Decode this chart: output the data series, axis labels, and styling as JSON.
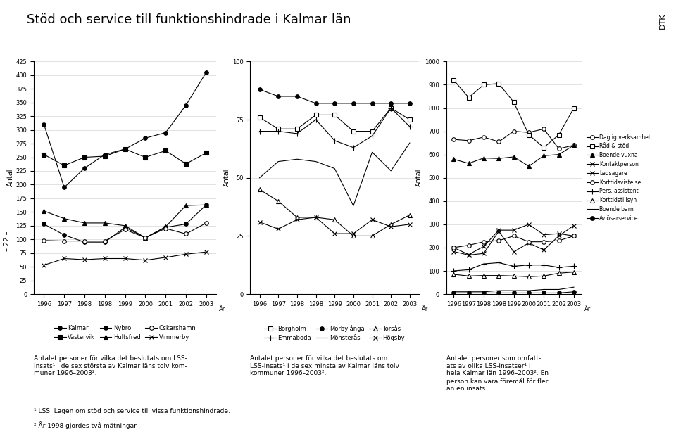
{
  "title": "Stöd och service till funktionshindrade i Kalmar län",
  "dtk_label": "DTK",
  "footnote1": "¹ LSS: Lagen om stöd och service till vissa funktionshindrade.",
  "footnote2": "² År 1998 gjordes två mätningar.",
  "page_label": "– 22 –",
  "chart1": {
    "ylabel": "Antal",
    "xlabel": "År",
    "ylim": [
      0,
      425
    ],
    "yticks": [
      0,
      25,
      50,
      75,
      100,
      125,
      150,
      175,
      200,
      225,
      250,
      275,
      300,
      325,
      350,
      375,
      400,
      425
    ],
    "x_labels": [
      "1996",
      "1997",
      "1998",
      "1998",
      "1999",
      "2000",
      "2001",
      "2002",
      "2003"
    ],
    "caption": "Antalet personer för vilka det beslutats om LSS-insats¹ i de sex största av Kalmar läns tolv kommuner 1996–2003².",
    "series": {
      "Kalmar": {
        "values": [
          310,
          195,
          230,
          255,
          265,
          285,
          295,
          345,
          405
        ],
        "marker": "o",
        "mfc": "black"
      },
      "Västervik": {
        "values": [
          255,
          235,
          250,
          252,
          265,
          250,
          262,
          238,
          258
        ],
        "marker": "s",
        "mfc": "black"
      },
      "Nybro": {
        "values": [
          128,
          108,
          95,
          95,
          122,
          103,
          122,
          128,
          163
        ],
        "marker": "o",
        "mfc": "black"
      },
      "Hultsfred": {
        "values": [
          152,
          138,
          130,
          130,
          125,
          103,
          123,
          162,
          163
        ],
        "marker": "^",
        "mfc": "black"
      },
      "Oskarshamn": {
        "values": [
          98,
          97,
          97,
          97,
          118,
          103,
          120,
          110,
          130
        ],
        "marker": "o",
        "mfc": "white"
      },
      "Vimmerby": {
        "values": [
          53,
          65,
          63,
          65,
          65,
          62,
          67,
          73,
          77
        ],
        "marker": "x",
        "mfc": "black"
      }
    },
    "legend_order": [
      "Kalmar",
      "Västervik",
      "Nybro",
      "Hultsfred",
      "Oskarshamn",
      "Vimmerby"
    ]
  },
  "chart2": {
    "ylabel": "Antal",
    "xlabel": "År",
    "ylim": [
      0,
      100
    ],
    "yticks": [
      0,
      25,
      50,
      75,
      100
    ],
    "x_labels": [
      "1996",
      "1997",
      "1998",
      "1998",
      "1999",
      "2000",
      "2001",
      "2002",
      "2003"
    ],
    "caption": "Antalet personer för vilka det beslutats om LSS-insats¹ i de sex minsta av Kalmar läns tolv kommuner 1996–2003².",
    "series": {
      "Borgholm": {
        "values": [
          76,
          71,
          71,
          77,
          77,
          70,
          70,
          80,
          75
        ],
        "marker": "s",
        "mfc": "white"
      },
      "Emmaboda": {
        "values": [
          70,
          70,
          69,
          75,
          66,
          63,
          68,
          80,
          72
        ],
        "marker": "+",
        "mfc": "black"
      },
      "Mörbylånga": {
        "values": [
          88,
          85,
          85,
          82,
          82,
          82,
          82,
          82,
          82
        ],
        "marker": "o",
        "mfc": "black"
      },
      "Mönsterås": {
        "values": [
          50,
          57,
          58,
          57,
          54,
          38,
          61,
          53,
          65
        ],
        "marker": null,
        "mfc": "black"
      },
      "Torsås": {
        "values": [
          45,
          40,
          33,
          33,
          32,
          25,
          25,
          30,
          34
        ],
        "marker": "^",
        "mfc": "white"
      },
      "Högsby": {
        "values": [
          31,
          28,
          32,
          33,
          26,
          26,
          32,
          29,
          30
        ],
        "marker": "x",
        "mfc": "black"
      }
    },
    "legend_order": [
      "Borgholm",
      "Emmaboda",
      "Mörbylånga",
      "Mönsterås",
      "Torsås",
      "Högsby"
    ]
  },
  "chart3": {
    "ylabel": "Antal",
    "xlabel": "År",
    "ylim": [
      0,
      1000
    ],
    "yticks": [
      0,
      100,
      200,
      300,
      400,
      500,
      600,
      700,
      800,
      900,
      1000
    ],
    "x_labels": [
      "1996",
      "1997",
      "1998",
      "1998",
      "1999",
      "2000",
      "2001",
      "2002",
      "2003"
    ],
    "caption": "Antalet personer som omfattats av olika LSS-insatser¹ i hela Kalmar län 1996–2003². En person kan vara föremål för fler än en insats.",
    "series": {
      "Daglig verksamhet": {
        "values": [
          665,
          660,
          675,
          655,
          700,
          695,
          710,
          625,
          640
        ],
        "marker": "o",
        "mfc": "white"
      },
      "Råd & stöd": {
        "values": [
          920,
          845,
          900,
          905,
          825,
          685,
          630,
          685,
          800
        ],
        "marker": "s",
        "mfc": "white"
      },
      "Boende vuxna": {
        "values": [
          580,
          562,
          585,
          583,
          590,
          550,
          595,
          600,
          640
        ],
        "marker": "^",
        "mfc": "black"
      },
      "Kontaktperson": {
        "values": [
          200,
          170,
          205,
          275,
          275,
          300,
          255,
          260,
          250
        ],
        "marker": "x",
        "mfc": "black"
      },
      "Ledsagare": {
        "values": [
          183,
          168,
          175,
          270,
          182,
          220,
          190,
          250,
          295
        ],
        "marker": "x",
        "mfc": "black"
      },
      "Korttidsvistelse": {
        "values": [
          200,
          210,
          225,
          230,
          250,
          225,
          225,
          230,
          250
        ],
        "marker": "o",
        "mfc": "white"
      },
      "Pers. assistent": {
        "values": [
          100,
          105,
          130,
          135,
          120,
          125,
          125,
          115,
          120
        ],
        "marker": "+",
        "mfc": "black"
      },
      "Korttidstillsyn": {
        "values": [
          85,
          78,
          80,
          80,
          78,
          75,
          78,
          90,
          95
        ],
        "marker": "^",
        "mfc": "white"
      },
      "Boende barn": {
        "values": [
          10,
          10,
          10,
          15,
          15,
          15,
          20,
          20,
          30
        ],
        "marker": null,
        "mfc": "black"
      },
      "Avlösarservice": {
        "values": [
          5,
          5,
          5,
          5,
          5,
          5,
          5,
          5,
          10
        ],
        "marker": "o",
        "mfc": "black"
      }
    },
    "legend_order": [
      "Daglig verksamhet",
      "Råd & stöd",
      "Boende vuxna",
      "Kontaktperson",
      "Ledsagare",
      "Korttidsvistelse",
      "Pers. assistent",
      "Korttidstillsyn",
      "Boende barn",
      "Avlösarservice"
    ]
  }
}
